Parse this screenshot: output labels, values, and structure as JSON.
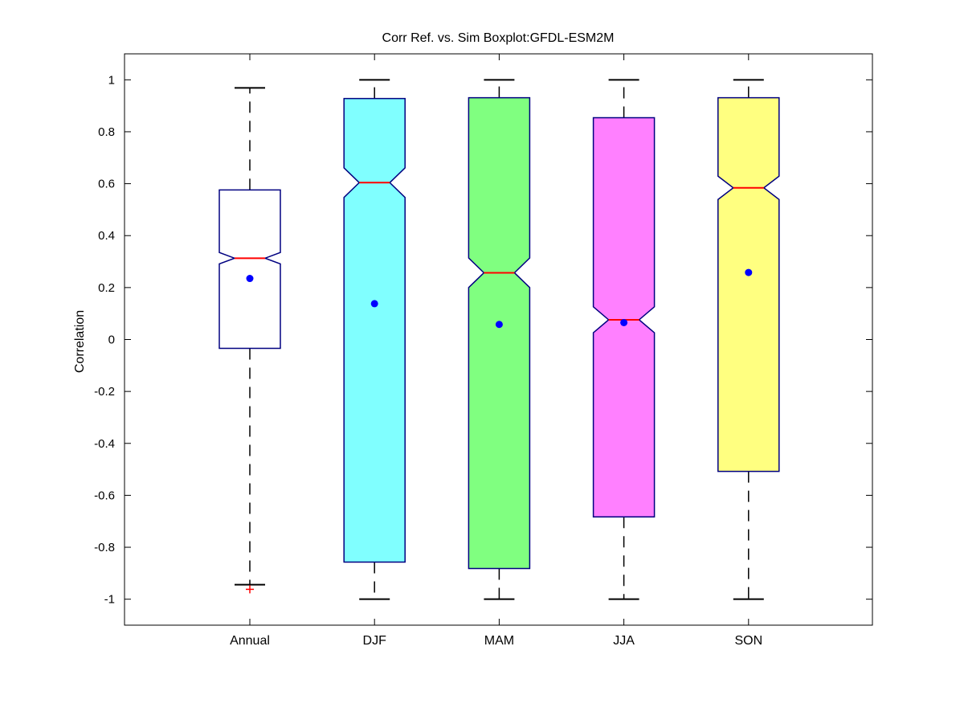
{
  "chart_data": {
    "type": "box",
    "title": "Corr Ref. vs. Sim Boxplot:GFDL-ESM2M",
    "xlabel": "",
    "ylabel": "Correlation",
    "ylim": [
      -1.1,
      1.1
    ],
    "yticks": [
      -1,
      -0.8,
      -0.6,
      -0.4,
      -0.2,
      0,
      0.2,
      0.4,
      0.6,
      0.8,
      1
    ],
    "ytick_labels": [
      "-1",
      "-0.8",
      "-0.6",
      "-0.4",
      "-0.2",
      "0",
      "0.2",
      "0.4",
      "0.6",
      "0.8",
      "1"
    ],
    "notched": true,
    "grid": false,
    "categories": [
      "Annual",
      "DJF",
      "MAM",
      "JJA",
      "SON"
    ],
    "boxes": [
      {
        "label": "Annual",
        "color": "#ffffff",
        "whisker_low": -0.944,
        "q1": -0.034,
        "median": 0.313,
        "q3": 0.576,
        "whisker_high": 0.969,
        "notch_low": 0.291,
        "notch_high": 0.335,
        "mean": 0.235,
        "outliers": [
          -0.962
        ]
      },
      {
        "label": "DJF",
        "color": "#80ffff",
        "whisker_low": -1.0,
        "q1": -0.857,
        "median": 0.604,
        "q3": 0.928,
        "whisker_high": 1.0,
        "notch_low": 0.547,
        "notch_high": 0.661,
        "mean": 0.138,
        "outliers": []
      },
      {
        "label": "MAM",
        "color": "#80ff80",
        "whisker_low": -1.0,
        "q1": -0.882,
        "median": 0.257,
        "q3": 0.931,
        "whisker_high": 1.0,
        "notch_low": 0.2,
        "notch_high": 0.314,
        "mean": 0.058,
        "outliers": []
      },
      {
        "label": "JJA",
        "color": "#ff80ff",
        "whisker_low": -1.0,
        "q1": -0.683,
        "median": 0.076,
        "q3": 0.854,
        "whisker_high": 1.0,
        "notch_low": 0.026,
        "notch_high": 0.126,
        "mean": 0.065,
        "outliers": []
      },
      {
        "label": "SON",
        "color": "#ffff80",
        "whisker_low": -1.0,
        "q1": -0.508,
        "median": 0.584,
        "q3": 0.931,
        "whisker_high": 1.0,
        "notch_low": 0.539,
        "notch_high": 0.629,
        "mean": 0.258,
        "outliers": []
      }
    ],
    "colors": {
      "box_edge": "#000080",
      "median": "#ff0000",
      "mean_marker": "#0000ff",
      "whisker": "#000000",
      "outlier": "#ff0000"
    }
  }
}
